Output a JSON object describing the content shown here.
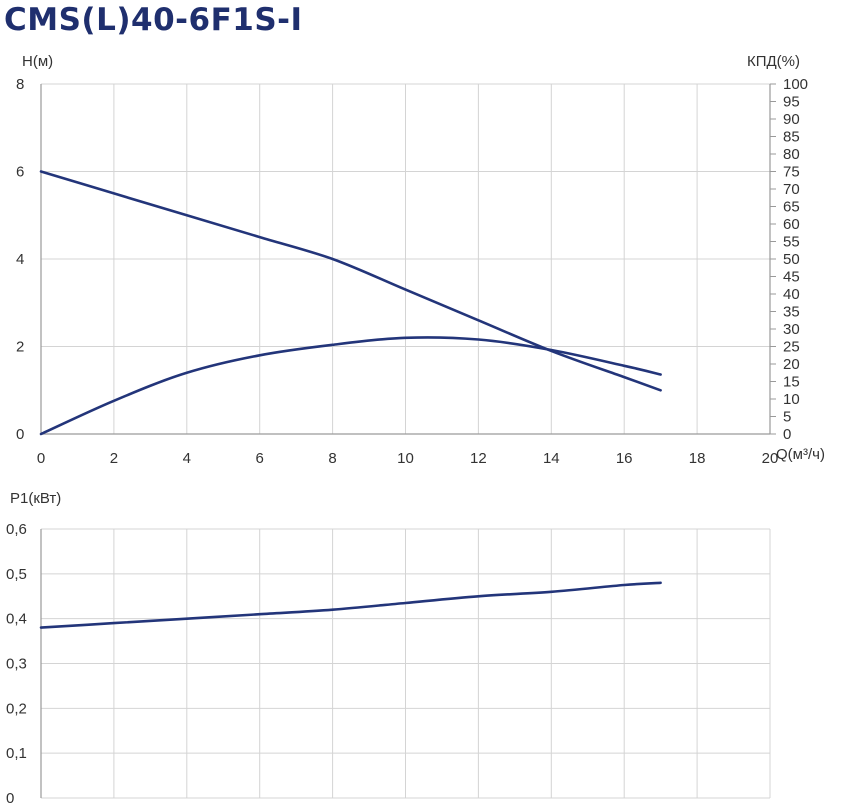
{
  "title": "CMS(L)40-6F1S-I",
  "colors": {
    "title": "#1f2f6e",
    "curve": "#23357a",
    "grid": "#d4d4d4",
    "axis": "#9a9a9a",
    "text": "#333333"
  },
  "chart_data": [
    {
      "type": "line",
      "xlabel": "Q(м³/ч)",
      "ylabel": "H(м)",
      "y2label": "КПД(%)",
      "xlim": [
        0,
        20
      ],
      "ylim": [
        0,
        8
      ],
      "y2lim": [
        0,
        100
      ],
      "xticks": [
        "0",
        "2",
        "4",
        "6",
        "8",
        "10",
        "12",
        "14",
        "16",
        "18",
        "20"
      ],
      "yticks": [
        "0",
        "2",
        "4",
        "6",
        "8"
      ],
      "y2ticks": [
        "0",
        "5",
        "10",
        "15",
        "20",
        "25",
        "30",
        "35",
        "40",
        "45",
        "50",
        "55",
        "60",
        "65",
        "70",
        "75",
        "80",
        "85",
        "90",
        "95",
        "100"
      ],
      "grid": true,
      "series": [
        {
          "axis": "left",
          "x": [
            0,
            2,
            4,
            6,
            8,
            10,
            12,
            14,
            16,
            17
          ],
          "values": [
            6.0,
            5.5,
            5.0,
            4.5,
            4.0,
            3.3,
            2.6,
            1.9,
            1.3,
            1.0
          ]
        },
        {
          "axis": "right",
          "x": [
            0,
            2,
            4,
            6,
            8,
            10,
            12,
            14,
            16,
            17
          ],
          "values": [
            0,
            9.5,
            17.5,
            22.5,
            25.5,
            27.5,
            27,
            24,
            19.5,
            17
          ]
        }
      ]
    },
    {
      "type": "line",
      "xlabel": "",
      "ylabel": "P1(кВт)",
      "xlim": [
        0,
        20
      ],
      "ylim": [
        0,
        0.6
      ],
      "yticks": [
        "0",
        "0,1",
        "0,2",
        "0,3",
        "0,4",
        "0,5",
        "0,6"
      ],
      "grid": true,
      "series": [
        {
          "x": [
            0,
            2,
            4,
            6,
            8,
            10,
            12,
            14,
            16,
            17
          ],
          "values": [
            0.38,
            0.39,
            0.4,
            0.41,
            0.42,
            0.435,
            0.45,
            0.46,
            0.475,
            0.48
          ]
        }
      ]
    }
  ]
}
